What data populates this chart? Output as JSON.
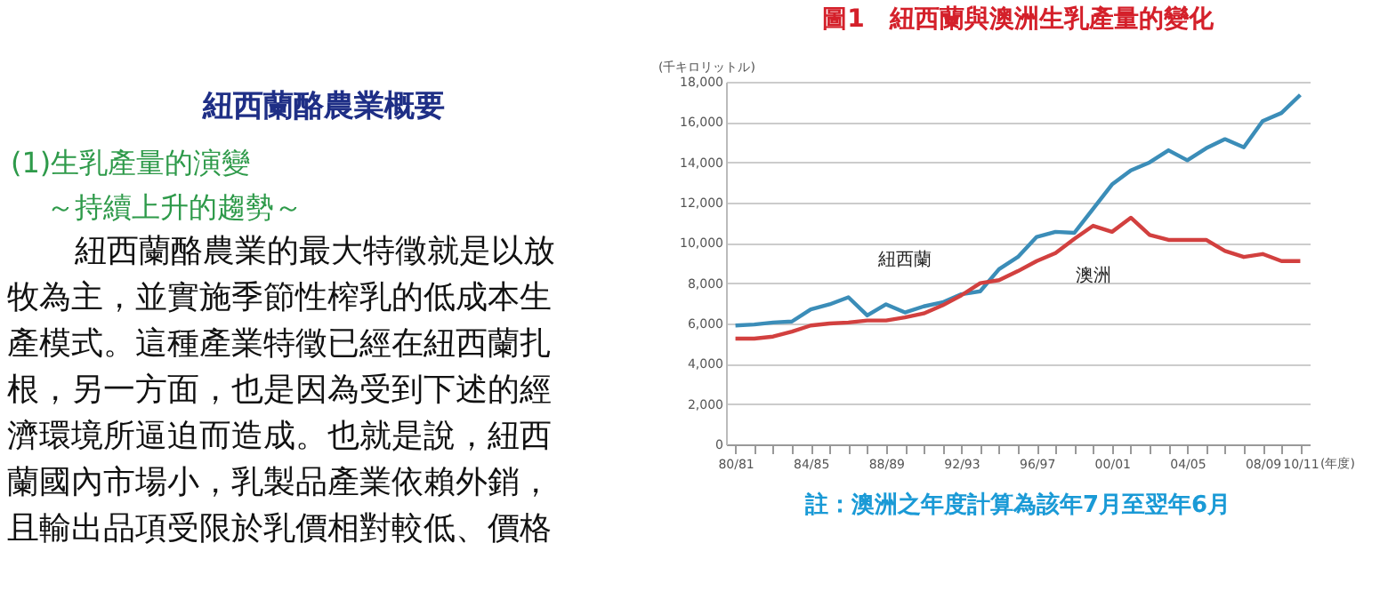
{
  "chart_data": {
    "type": "line",
    "title": "圖1　紐西蘭與澳洲生乳產量的變化",
    "categories": [
      "80/81",
      null,
      null,
      null,
      "84/85",
      null,
      null,
      null,
      "88/89",
      null,
      null,
      null,
      "92/93",
      null,
      null,
      null,
      "96/97",
      null,
      null,
      null,
      "00/01",
      null,
      null,
      null,
      "04/05",
      null,
      null,
      null,
      "08/09",
      null,
      "10/11"
    ],
    "series": [
      {
        "name": "紐西蘭",
        "color": "#3b8db8",
        "values": [
          5900,
          5950,
          6050,
          6100,
          6700,
          6950,
          7300,
          6400,
          6950,
          6550,
          6850,
          7050,
          7450,
          7600,
          8700,
          9300,
          10300,
          10550,
          10500,
          11700,
          12900,
          13600,
          14000,
          14600,
          14100,
          14700,
          15150,
          14750,
          16050,
          16450,
          17350
        ]
      },
      {
        "name": "澳洲",
        "color": "#d2403f",
        "values": [
          5250,
          5250,
          5350,
          5600,
          5900,
          6000,
          6050,
          6150,
          6150,
          6300,
          6500,
          6900,
          7400,
          8000,
          8150,
          8600,
          9100,
          9500,
          10200,
          10850,
          10550,
          11250,
          10400,
          10150,
          10150,
          10150,
          9600,
          9300,
          9450,
          9100,
          9100
        ]
      }
    ],
    "ylim": [
      0,
      18000
    ],
    "yticks": [
      {
        "value": 0,
        "label": "0"
      },
      {
        "value": 2000,
        "label": "2,000"
      },
      {
        "value": 4000,
        "label": "4,000"
      },
      {
        "value": 6000,
        "label": "6,000"
      },
      {
        "value": 8000,
        "label": "8,000"
      },
      {
        "value": 10000,
        "label": "10,000"
      },
      {
        "value": 12000,
        "label": "12,000"
      },
      {
        "value": 14000,
        "label": "14,000"
      },
      {
        "value": 16000,
        "label": "16,000"
      },
      {
        "value": 18000,
        "label": "18,000"
      }
    ],
    "grid": "y",
    "ylabel": "(千キロリットル)",
    "xlabel": "(年度)",
    "annotations": [
      "紐西蘭酪農業概要",
      "(1)生乳產量的演變",
      "～持續上升的趨勢～",
      "紐西蘭酪農業的最大特徵就是以放",
      "牧為主，並實施季節性榨乳的低成本生",
      "產模式。這種產業特徵已經在紐西蘭扎",
      "根，另一方面，也是因為受到下述的經",
      "濟環境所逼迫而造成。也就是說，紐西",
      "蘭國內市場小，乳製品產業依賴外銷，",
      "且輸出品項受限於乳價相對較低、價格",
      "註：澳洲之年度計算為該年7月至翌年6月"
    ]
  }
}
